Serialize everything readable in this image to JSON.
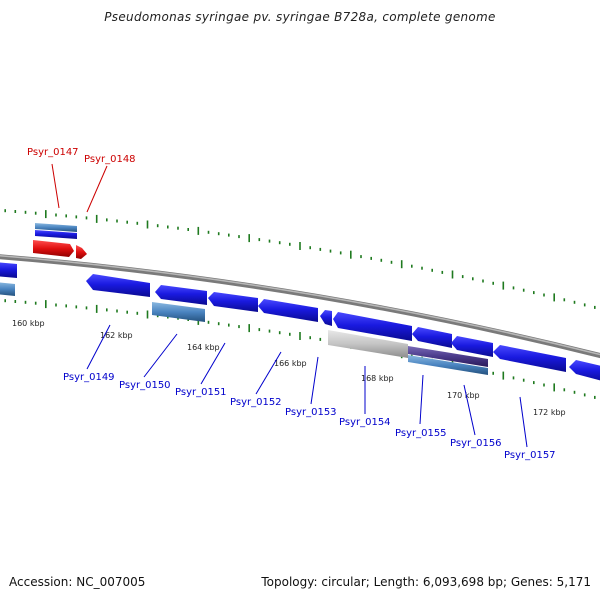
{
  "title": "Pseudomonas syringae pv. syringae B728a, complete genome",
  "footer": {
    "accession": "Accession: NC_007005",
    "topology": "Topology: circular; Length: 6,093,698 bp; Genes: 5,171"
  },
  "colors": {
    "backbone": "#8a8a8a",
    "gene_forward": "#1a1adc",
    "gene_reverse": "#1a1adc",
    "gene_highlight": "#e01010",
    "cds_pale": "#5a8fc0",
    "rna_gray": "#c8c8c8",
    "purple": "#4a3a8a",
    "tick": "#1f7a1f",
    "label_blue": "#0000cc",
    "label_red": "#cc0000"
  },
  "axis": {
    "unit": "kbp",
    "ticks": [
      "160 kbp",
      "162 kbp",
      "164 kbp",
      "166 kbp",
      "168 kbp",
      "170 kbp",
      "172 kbp"
    ]
  },
  "genes": [
    {
      "id": "Psyr_0147",
      "color": "red"
    },
    {
      "id": "Psyr_0148",
      "color": "red"
    },
    {
      "id": "Psyr_0149",
      "color": "blue"
    },
    {
      "id": "Psyr_0150",
      "color": "blue"
    },
    {
      "id": "Psyr_0151",
      "color": "blue"
    },
    {
      "id": "Psyr_0152",
      "color": "blue"
    },
    {
      "id": "Psyr_0153",
      "color": "blue"
    },
    {
      "id": "Psyr_0154",
      "color": "blue"
    },
    {
      "id": "Psyr_0155",
      "color": "blue"
    },
    {
      "id": "Psyr_0156",
      "color": "blue"
    },
    {
      "id": "Psyr_0157",
      "color": "blue"
    }
  ]
}
